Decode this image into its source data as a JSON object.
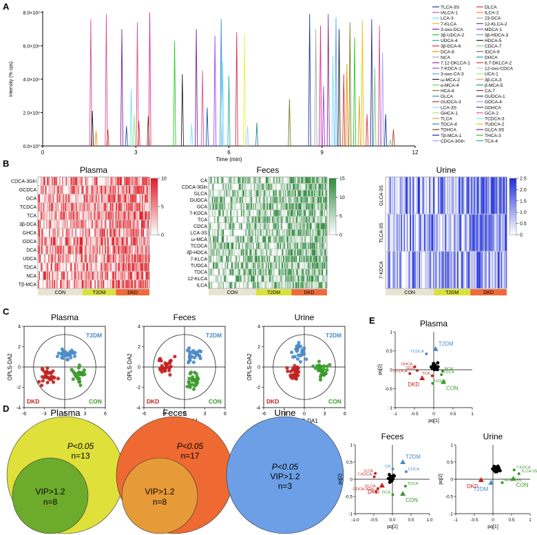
{
  "figure": {
    "panel_letters": [
      "A",
      "B",
      "C",
      "D",
      "E"
    ]
  },
  "chart_data": [
    {
      "id": "A",
      "type": "line",
      "title": "",
      "xlabel": "Time (min)",
      "ylabel": "Intensity (% cps)",
      "xlim": [
        0,
        12
      ],
      "ylim": [
        0,
        8000000
      ],
      "xticks": [
        "0",
        "3",
        "6",
        "9",
        "12"
      ],
      "yticks": [
        "0.0×10⁰",
        "2.0×10⁶",
        "4.0×10⁶",
        "6.0×10⁶",
        "8.0×10⁶"
      ],
      "legend_col1": [
        "TLCA-3S",
        "IALCA-1",
        "LCA-3",
        "7-KLCA",
        "3-oxo-DCA",
        "3β-UDCA-2",
        "UDCA-4",
        "3β-DCA-6",
        "DCA-8",
        "NCA",
        "7,12-DKLCA-1",
        "7-KDCA-1",
        "3-oxo-CA-3",
        "ω-MCA-2",
        "α-MCA-4",
        "HCA-6",
        "GLCA",
        "GUDCA-3",
        "LCA-3S",
        "GHCA-1",
        "TLCA",
        "TDCA-4",
        "TDHCA",
        "Tβ-MCA-1",
        "CDCA-3Gln"
      ],
      "legend_col2": [
        "DLCA",
        "ILCA-2",
        "23-DCA",
        "12-KLCA-2",
        "MDCA-1",
        "3β-HDCA-3",
        "HDCA-5",
        "CDCA-7",
        "IDCA-9",
        "DHCA",
        "6,7-DKLCA-2",
        "12-oxo-CDCA",
        "UCA-1",
        "3β-CA-3",
        "β-MCA-5",
        "CA-7",
        "GUDCA-1",
        "GDCA-4",
        "GDHCA",
        "GCA-2",
        "TCDCA-3",
        "TUDCA-2",
        "GLCA-3S",
        "THCA-3",
        "TCA-4"
      ],
      "peaks": [
        {
          "t": 1.55,
          "h": 7600000.0,
          "c": "#e0488f"
        },
        {
          "t": 1.6,
          "h": 2100000.0,
          "c": "#222222"
        },
        {
          "t": 1.72,
          "h": 900000.0,
          "c": "#ff8c00"
        },
        {
          "t": 2.05,
          "h": 7900000.0,
          "c": "#e0488f"
        },
        {
          "t": 2.1,
          "h": 1000000.0,
          "c": "#cc3333"
        },
        {
          "t": 2.55,
          "h": 7000000.0,
          "c": "#7a1fa2"
        },
        {
          "t": 2.7,
          "h": 1200000.0,
          "c": "#1f4fa5"
        },
        {
          "t": 2.85,
          "h": 3400000.0,
          "c": "#6de0ff"
        },
        {
          "t": 2.95,
          "h": 1900000.0,
          "c": "#b0e060"
        },
        {
          "t": 3.05,
          "h": 7400000.0,
          "c": "#e0488f"
        },
        {
          "t": 3.1,
          "h": 1500000.0,
          "c": "#cc3333"
        },
        {
          "t": 3.45,
          "h": 8000000.0,
          "c": "#e0288f"
        },
        {
          "t": 3.4,
          "h": 1800000.0,
          "c": "#7a3a1a"
        },
        {
          "t": 4.25,
          "h": 6300000.0,
          "c": "#22cc22"
        },
        {
          "t": 4.5,
          "h": 4300000.0,
          "c": "#222222"
        },
        {
          "t": 4.8,
          "h": 1300000.0,
          "c": "#6de0ff"
        },
        {
          "t": 4.95,
          "h": 7000000.0,
          "c": "#7a1fa2"
        },
        {
          "t": 5.15,
          "h": 4500000.0,
          "c": "#e0488f"
        },
        {
          "t": 5.3,
          "h": 2300000.0,
          "c": "#1f4fa5"
        },
        {
          "t": 5.55,
          "h": 6600000.0,
          "c": "#a040ff"
        },
        {
          "t": 5.75,
          "h": 7600000.0,
          "c": "#2f8fd0"
        },
        {
          "t": 5.8,
          "h": 5100000.0,
          "c": "#6de0ff"
        },
        {
          "t": 6.0,
          "h": 4200000.0,
          "c": "#20b0a0"
        },
        {
          "t": 6.25,
          "h": 6800000.0,
          "c": "#e03040"
        },
        {
          "t": 6.5,
          "h": 6700000.0,
          "c": "#f0f040"
        },
        {
          "t": 6.6,
          "h": 1200000.0,
          "c": "#a0d0ff"
        },
        {
          "t": 6.9,
          "h": 1400000.0,
          "c": "#2a8a8a"
        },
        {
          "t": 7.95,
          "h": 2800000.0,
          "c": "#7a7a20"
        },
        {
          "t": 8.6,
          "h": 7900000.0,
          "c": "#1a3a9a"
        },
        {
          "t": 8.8,
          "h": 7000000.0,
          "c": "#aaaaaa"
        },
        {
          "t": 8.95,
          "h": 7200000.0,
          "c": "#e0288f"
        },
        {
          "t": 9.05,
          "h": 3600000.0,
          "c": "#a040ff"
        },
        {
          "t": 9.2,
          "h": 7900000.0,
          "c": "#8a2a8a"
        },
        {
          "t": 9.35,
          "h": 5400000.0,
          "c": "#6de0ff"
        },
        {
          "t": 9.45,
          "h": 7700000.0,
          "c": "#4fa0ff"
        },
        {
          "t": 9.55,
          "h": 7000000.0,
          "c": "#222222"
        },
        {
          "t": 9.7,
          "h": 4300000.0,
          "c": "#cc3333"
        },
        {
          "t": 9.8,
          "h": 4900000.0,
          "c": "#ff8c00"
        },
        {
          "t": 9.9,
          "h": 7400000.0,
          "c": "#7a7a20"
        },
        {
          "t": 10.05,
          "h": 6500000.0,
          "c": "#22cc22"
        },
        {
          "t": 10.2,
          "h": 3000000.0,
          "c": "#e0a040"
        },
        {
          "t": 10.3,
          "h": 7500000.0,
          "c": "#f0c000"
        },
        {
          "t": 10.45,
          "h": 1900000.0,
          "c": "#e03040"
        },
        {
          "t": 10.6,
          "h": 7600000.0,
          "c": "#2a2aa0"
        },
        {
          "t": 10.7,
          "h": 4700000.0,
          "c": "#70d070"
        },
        {
          "t": 10.85,
          "h": 7200000.0,
          "c": "#e0488f"
        },
        {
          "t": 10.95,
          "h": 5600000.0,
          "c": "#a0a0ff"
        },
        {
          "t": 11.05,
          "h": 1900000.0,
          "c": "#1a3a9a"
        },
        {
          "t": 11.2,
          "h": 400000.0,
          "c": "#80d080"
        },
        {
          "t": 11.3,
          "h": 1000000.0,
          "c": "#cc3333"
        }
      ],
      "series_colors": [
        "#1a3a9a",
        "#e0488f",
        "#6de0ff",
        "#f0c000",
        "#7a1fa2",
        "#22cc22",
        "#20b0a0",
        "#e03040",
        "#ff8c00",
        "#aaaaaa",
        "#8a2a8a",
        "#a040ff",
        "#4fa0ff",
        "#222222",
        "#70d070",
        "#7a7a20",
        "#2f8fd0",
        "#cc3333",
        "#a0d0ff",
        "#b0e060",
        "#e0a040",
        "#2a8a8a",
        "#7a3a1a",
        "#2a2aa0",
        "#a0a0ff"
      ]
    },
    {
      "id": "B-plasma",
      "type": "heatmap",
      "title": "Plasma",
      "rows": [
        "CDCA-3Gln",
        "GCDCA",
        "GCA",
        "TCDCA",
        "TCA",
        "3β-DCA",
        "GHCA",
        "GDCA",
        "DCA",
        "UDCA",
        "TDCA",
        "NCA",
        "Tβ-MCA"
      ],
      "groups": [
        "CON",
        "T2DM",
        "DKD"
      ],
      "group_colors": [
        "#e8e4cf",
        "#d9e23a",
        "#ee6b3a"
      ],
      "scale": [
        0,
        10
      ],
      "colorbar_ticks": [
        "10",
        "5",
        "0"
      ],
      "color": "#e01b24"
    },
    {
      "id": "B-feces",
      "type": "heatmap",
      "title": "Feces",
      "rows": [
        "CA",
        "CDCA-3Gln",
        "GLCA",
        "GUDCA",
        "GCA",
        "7-KDCA",
        "TCA",
        "CDCA",
        "LCA-3S",
        "ω-MCA",
        "TCDCA",
        "3β-HDCA",
        "7-KLCA",
        "TUDCA",
        "TDCA",
        "12-KLCA",
        "ILCA"
      ],
      "groups": [
        "CON",
        "T2DM",
        "DKD"
      ],
      "group_colors": [
        "#e8e4cf",
        "#d9e23a",
        "#ee6b3a"
      ],
      "scale": [
        0,
        15
      ],
      "colorbar_ticks": [
        "15",
        "10",
        "5",
        "0"
      ],
      "color": "#2e8b3e"
    },
    {
      "id": "B-urine",
      "type": "heatmap",
      "title": "Urine",
      "rows": [
        "GLCA-3S",
        "TLCA-3S",
        "7-KDCA"
      ],
      "groups": [
        "CON",
        "T2DM",
        "DKD"
      ],
      "group_colors": [
        "#e8e4cf",
        "#d9e23a",
        "#ee6b3a"
      ],
      "scale": [
        0,
        2.5
      ],
      "colorbar_ticks": [
        "2.5",
        "2.0",
        "1.5",
        "1.0",
        "0.5",
        "0"
      ],
      "color": "#1f2fd8"
    },
    {
      "id": "C",
      "type": "scatter",
      "xlabel": "OPLS-DA1",
      "ylabel": "OPLS-DA2",
      "xlim": [
        -6,
        6
      ],
      "ylim": [
        -4,
        4
      ],
      "xticks": [
        "-6",
        "-3",
        "0",
        "3",
        "6"
      ],
      "yticks": [
        "-4",
        "-2",
        "0",
        "2",
        "4"
      ],
      "group_labels": {
        "DKD": "DKD",
        "T2DM": "T2DM",
        "CON": "CON"
      },
      "group_colors": {
        "DKD": "#c0211f",
        "T2DM": "#4a8bc8",
        "CON": "#3a9a2a"
      },
      "plots": [
        {
          "title": "Plasma",
          "seed": 3,
          "centers": {
            "DKD": [
              -2.4,
              -0.9
            ],
            "T2DM": [
              0.3,
              1.4
            ],
            "CON": [
              1.9,
              -0.8
            ]
          }
        },
        {
          "title": "Feces",
          "seed": 7,
          "centers": {
            "DKD": [
              -2.6,
              0.2
            ],
            "T2DM": [
              1.4,
              1.2
            ],
            "CON": [
              1.4,
              -1.2
            ]
          }
        },
        {
          "title": "Urine",
          "seed": 11,
          "centers": {
            "DKD": [
              -1.4,
              -0.6
            ],
            "T2DM": [
              -0.7,
              1.6
            ],
            "CON": [
              2.4,
              -0.3
            ]
          }
        }
      ]
    },
    {
      "id": "D",
      "type": "diagram",
      "items": [
        {
          "title": "Plasma",
          "outer_label": "P<0.05",
          "outer_n": "n=13",
          "inner_label": "VIP>1.2",
          "inner_n": "n=8",
          "outer_color": "#dfe03a",
          "inner_color": "#6dab2c"
        },
        {
          "title": "Feces",
          "outer_label": "P<0.05",
          "outer_n": "n=17",
          "inner_label": "VIP>1.2",
          "inner_n": "n=8",
          "outer_color": "#ee6a32",
          "inner_color": "#e69a38"
        },
        {
          "title": "Urine",
          "line1": "P<0.05",
          "line2": "VIP>1.2",
          "line3": "n=3",
          "color": "#6c9fe6"
        }
      ]
    },
    {
      "id": "E",
      "type": "scatter",
      "xlabel": "pq[1]",
      "ylabel": "pq[2]",
      "plots": [
        {
          "title": "Plasma",
          "xlim": [
            -1,
            1
          ],
          "ylim": [
            -1,
            1
          ],
          "xticks": [
            "-1",
            "-0.5",
            "0",
            "0.5",
            "1"
          ],
          "yticks": [
            "-1",
            "-0.5",
            "0",
            "0.5",
            "1"
          ],
          "centroids": [
            {
              "label": "T2DM",
              "x": 0.05,
              "y": 0.55,
              "color": "#4a8bc8"
            },
            {
              "label": "DKD",
              "x": -0.3,
              "y": -0.22,
              "color": "#c0211f"
            },
            {
              "label": "CON",
              "x": 0.25,
              "y": -0.32,
              "color": "#3a9a2a"
            }
          ],
          "labels": [
            {
              "t": "TCDCA",
              "x": -0.25,
              "y": 0.42,
              "color": "#4a8bc8"
            },
            {
              "t": "GHCA",
              "x": -0.55,
              "y": 0.08,
              "color": "#c0211f"
            },
            {
              "t": "GCA",
              "x": -0.49,
              "y": -0.02,
              "color": "#c0211f"
            },
            {
              "t": "GCDCA",
              "x": -0.68,
              "y": -0.1,
              "color": "#c0211f"
            },
            {
              "t": "TCA",
              "x": -0.1,
              "y": -0.16,
              "color": "#c0211f"
            },
            {
              "t": "NCA",
              "x": 0.28,
              "y": -0.04,
              "color": "#3a9a2a"
            },
            {
              "t": "TDCA",
              "x": 0.25,
              "y": -0.13,
              "color": "#3a9a2a"
            },
            {
              "t": "GDCA",
              "x": 0.02,
              "y": -0.36,
              "color": "#3a9a2a"
            }
          ],
          "cluster_seed": 5,
          "cluster_center": [
            0.02,
            0.08
          ]
        },
        {
          "title": "Feces",
          "xlim": [
            -1,
            1
          ],
          "ylim": [
            -1,
            1
          ],
          "xticks": [
            "-1.0",
            "-0.5",
            "0.0",
            "0.5",
            "1.0"
          ],
          "yticks": [
            "-1",
            "-0.5",
            "0",
            "0.5",
            "1"
          ],
          "centroids": [
            {
              "label": "T2DM",
              "x": 0.28,
              "y": 0.5,
              "color": "#4a8bc8"
            },
            {
              "label": "DKD",
              "x": -0.28,
              "y": -0.18,
              "color": "#c0211f"
            },
            {
              "label": "CON",
              "x": 0.28,
              "y": -0.42,
              "color": "#3a9a2a"
            }
          ],
          "labels": [
            {
              "t": "CA",
              "x": -0.05,
              "y": 0.3,
              "color": "#4a8bc8"
            },
            {
              "t": "CDCA",
              "x": 0.42,
              "y": 0.22,
              "color": "#4a8bc8"
            },
            {
              "t": "ILCA",
              "x": -0.52,
              "y": 0.17,
              "color": "#c0211f"
            },
            {
              "t": "7-KDCA",
              "x": -0.55,
              "y": 0.07,
              "color": "#c0211f"
            },
            {
              "t": "GLCA",
              "x": -0.45,
              "y": -0.27,
              "color": "#c0211f"
            },
            {
              "t": "CDCA-3Gln",
              "x": -0.5,
              "y": -0.36,
              "color": "#c0211f"
            },
            {
              "t": "TDCA",
              "x": 0.4,
              "y": -0.2,
              "color": "#3a9a2a"
            },
            {
              "t": "GCA",
              "x": -0.05,
              "y": -0.45,
              "color": "#3a9a2a"
            }
          ],
          "cluster_seed": 9,
          "cluster_center": [
            -0.02,
            0.02
          ]
        },
        {
          "title": "Urine",
          "xlim": [
            -1,
            1
          ],
          "ylim": [
            -1,
            1
          ],
          "xticks": [
            "-1",
            "-0.5",
            "0",
            "0.5",
            "1"
          ],
          "yticks": [
            "-1",
            "-0.5",
            "0",
            "0.5",
            "1"
          ],
          "centroids": [
            {
              "label": "DKD",
              "x": -0.32,
              "y": -0.02,
              "color": "#c0211f"
            },
            {
              "label": "T2DM",
              "x": -0.05,
              "y": -0.1,
              "color": "#4a8bc8"
            },
            {
              "label": "CON",
              "x": 0.55,
              "y": 0.02,
              "color": "#3a9a2a"
            }
          ],
          "labels": [
            {
              "t": "7-KDCA",
              "x": 0.62,
              "y": 0.27,
              "color": "#3a9a2a"
            },
            {
              "t": "TLCA-3S",
              "x": 0.75,
              "y": 0.16,
              "color": "#3a9a2a"
            },
            {
              "t": "GLCA-3S",
              "x": 0.3,
              "y": -0.1,
              "color": "#3a9a2a"
            }
          ],
          "cluster_seed": 13,
          "cluster_center": [
            0.1,
            0.3
          ]
        }
      ]
    }
  ]
}
